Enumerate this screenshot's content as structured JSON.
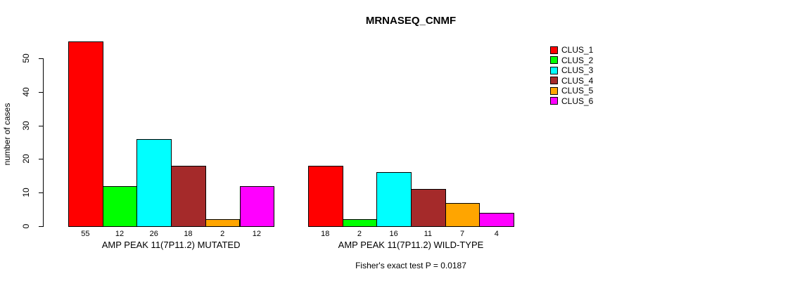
{
  "chart_data": {
    "type": "bar",
    "title": "MRNASEQ_CNMF",
    "ylabel": "number of cases",
    "xlabel": "",
    "yticks": [
      0,
      10,
      20,
      30,
      40,
      50
    ],
    "ylim": [
      0,
      55
    ],
    "grid": false,
    "legend_position": "top-right",
    "caption": "Fisher's exact test P = 0.0187",
    "legend": [
      {
        "label": "CLUS_1",
        "color": "#FF0000"
      },
      {
        "label": "CLUS_2",
        "color": "#00FF00"
      },
      {
        "label": "CLUS_3",
        "color": "#00FFFF"
      },
      {
        "label": "CLUS_4",
        "color": "#A52A2A"
      },
      {
        "label": "CLUS_5",
        "color": "#FFA500"
      },
      {
        "label": "CLUS_6",
        "color": "#FF00FF"
      }
    ],
    "groups": [
      {
        "label": "AMP PEAK 11(7P11.2) MUTATED",
        "values": [
          55,
          12,
          26,
          18,
          2,
          12
        ]
      },
      {
        "label": "AMP PEAK 11(7P11.2) WILD-TYPE",
        "values": [
          18,
          2,
          16,
          11,
          7,
          4
        ]
      }
    ]
  }
}
